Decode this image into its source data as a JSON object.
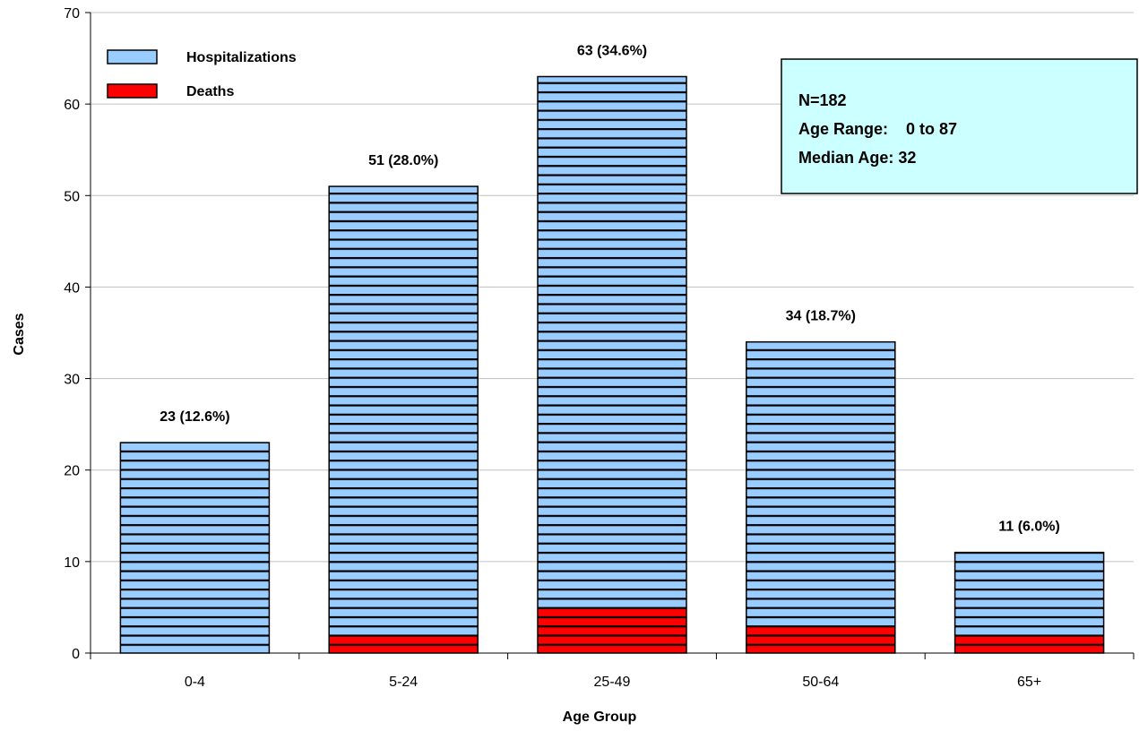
{
  "chart_data": {
    "type": "bar",
    "stacked": true,
    "title": "",
    "xlabel": "Age Group",
    "ylabel": "Cases",
    "ylim": [
      0,
      70
    ],
    "yticks": [
      0,
      10,
      20,
      30,
      40,
      50,
      60,
      70
    ],
    "grid": true,
    "legend_position": "top-left",
    "categories": [
      "0-4",
      "5-24",
      "25-49",
      "50-64",
      "65+"
    ],
    "series": [
      {
        "name": "Hospitalizations",
        "values": [
          23,
          51,
          63,
          34,
          11
        ],
        "color": "#99ccff",
        "pattern": "horizontal-stripes"
      },
      {
        "name": "Deaths",
        "values": [
          0,
          2,
          5,
          3,
          2
        ],
        "color": "#ff0000",
        "pattern": "horizontal-stripes"
      }
    ],
    "data_labels": [
      "23 (12.6%)",
      "51 (28.0%)",
      "63 (34.6%)",
      "34 (18.7%)",
      "11 (6.0%)"
    ],
    "annotation_box": {
      "lines": [
        "N=182",
        "Age Range:    0 to 87",
        "Median Age: 32"
      ],
      "background": "#ccffff"
    }
  }
}
